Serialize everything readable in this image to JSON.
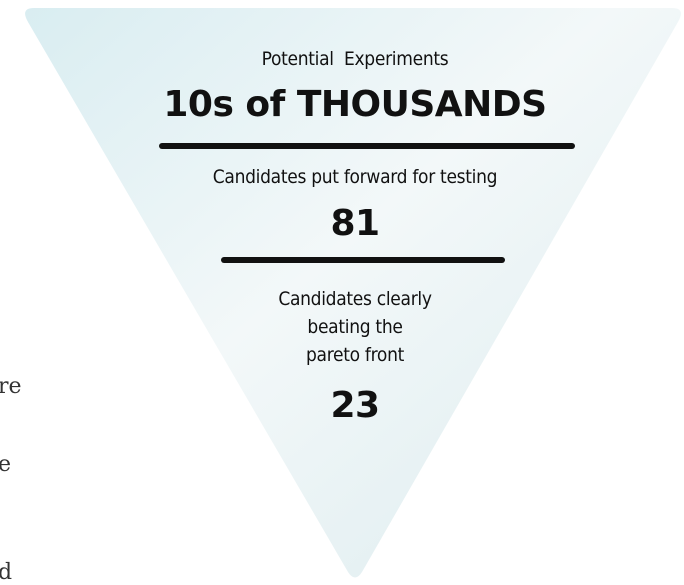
{
  "funnel": {
    "levels": [
      {
        "label": "Potential  Experiments",
        "value": "10s of THOUSANDS"
      },
      {
        "label": "Candidates put forward for testing",
        "value": "81"
      },
      {
        "label_lines": [
          "Candidates clearly",
          "beating the",
          "pareto front"
        ],
        "value": "23"
      }
    ]
  },
  "left_text_fragments": [
    "re",
    "e",
    "d"
  ]
}
